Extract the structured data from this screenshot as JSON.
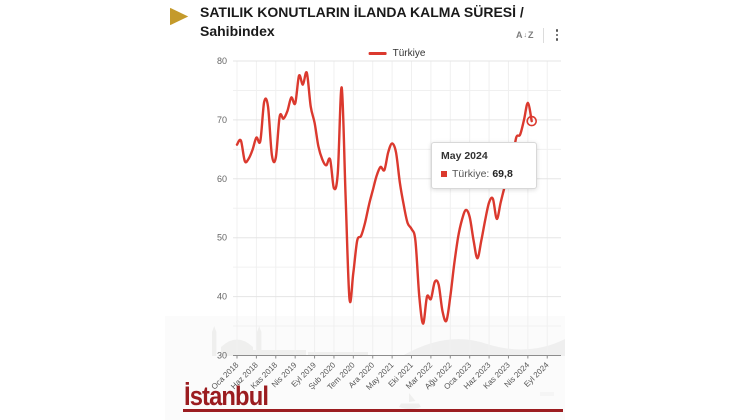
{
  "header": {
    "title_line1": "SATILIK KONUTLARIN İLANDA KALMA SÜRESİ /",
    "title_line2": "Sahibindex",
    "sort_icon": {
      "a": "A",
      "arrows": "↓",
      "z": "Z"
    }
  },
  "legend": {
    "items": [
      {
        "label": "Türkiye",
        "color": "#DB392E"
      }
    ]
  },
  "tooltip": {
    "title": "May 2024",
    "series_label": "Türkiye:",
    "value": "69,8",
    "swatch_color": "#DB392E"
  },
  "branding": {
    "logo_text": "İstanbul",
    "logo_color": "#9B1C20"
  },
  "colors": {
    "line": "#DB392E",
    "axis": "#8c8c8c",
    "grid_major": "#e5e5e5",
    "grid_minor": "#f0f0f0",
    "bullet": "#C49A2B"
  },
  "chart_data": {
    "type": "line",
    "title": "SATILIK KONUTLARIN İLANDA KALMA SÜRESİ / Sahibindex",
    "xlabel": "",
    "ylabel": "",
    "x_start": "Oca 2018",
    "x_end_data": "May 2024",
    "tick_interval_months": 5,
    "x_tick_labels": [
      "Oca 2018",
      "Haz 2018",
      "Kas 2018",
      "Nis 2019",
      "Eyl 2019",
      "Şub 2020",
      "Tem 2020",
      "Ara 2020",
      "May 2021",
      "Eki 2021",
      "Mar 2022",
      "Ağu 2022",
      "Oca 2023",
      "Haz 2023",
      "Kas 2023",
      "Nis 2024",
      "Eyl 2024"
    ],
    "y_ticks": [
      30,
      40,
      50,
      60,
      70,
      80
    ],
    "ylim": [
      30,
      80
    ],
    "grid": true,
    "legend_position": "top-center",
    "series": [
      {
        "name": "Türkiye",
        "color": "#DB392E",
        "monthly_values": [
          65.8,
          66.5,
          63.0,
          63.4,
          64.9,
          67.0,
          66.4,
          73.0,
          72.3,
          64.0,
          63.6,
          70.6,
          70.2,
          71.5,
          73.8,
          72.8,
          77.5,
          76.0,
          78.0,
          72.3,
          69.5,
          65.5,
          63.3,
          62.3,
          63.3,
          58.4,
          61.0,
          75.5,
          57.0,
          39.6,
          44.0,
          49.5,
          50.3,
          52.5,
          55.5,
          58.0,
          60.5,
          62.0,
          61.5,
          64.5,
          66.0,
          64.5,
          59.3,
          55.5,
          52.5,
          51.5,
          49.5,
          40.0,
          35.4,
          40.0,
          39.6,
          42.5,
          42.0,
          37.5,
          35.9,
          40.0,
          45.5,
          50.0,
          53.0,
          54.7,
          53.5,
          49.5,
          46.5,
          49.5,
          53.0,
          56.0,
          56.6,
          53.2,
          56.0,
          58.6,
          60.5,
          63.0,
          67.0,
          67.5,
          70.0,
          72.9,
          69.8
        ]
      }
    ],
    "highlight": {
      "label": "May 2024",
      "value": 69.8,
      "index": 76
    }
  }
}
